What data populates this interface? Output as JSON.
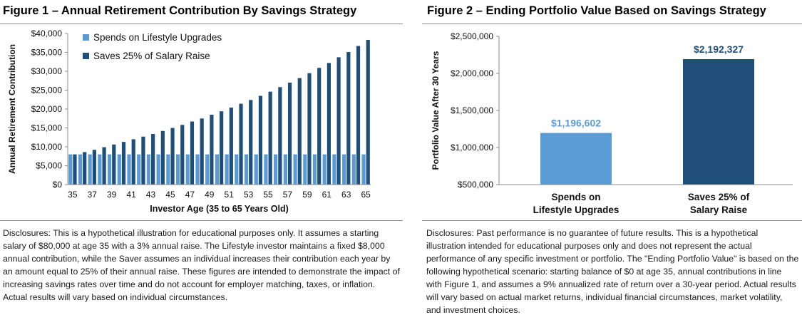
{
  "figure1": {
    "title": "Figure 1 – Annual Retirement Contribution By Savings Strategy",
    "disclosure": "Disclosures: This is a hypothetical illustration for educational purposes only. It assumes a starting salary of $80,000 at age 35 with a 3% annual raise. The Lifestyle investor maintains a fixed $8,000 annual contribution, while the Saver assumes an individual increases their contribution each year by an amount equal to 25% of their annual raise. These figures are intended to demonstrate the impact of increasing savings rates over time and do not account for employer matching, taxes, or inflation. Actual results will vary based on individual circumstances."
  },
  "figure2": {
    "title": "Figure 2 – Ending Portfolio Value Based on Savings Strategy",
    "disclosure": "Disclosures: Past performance is no guarantee of future results. This is a hypothetical illustration intended for educational purposes only and does not represent the actual performance of any specific investment or portfolio. The \"Ending Portfolio Value\" is based on the following hypothetical scenario: starting balance of $0 at age 35, annual contributions in line with Figure 1, and assumes a 9% annualized rate of return over a 30-year period. Actual results will vary based on actual market returns, individual financial circumstances, market volatility, and investment choices."
  },
  "colors": {
    "lifestyle": "#5b9bd5",
    "saver": "#1f4e79",
    "axis": "#8c8c8c",
    "text": "#000000"
  },
  "chart_data": [
    {
      "type": "bar",
      "title": "Figure 1 – Annual Retirement Contribution By Savings Strategy",
      "xlabel": "Investor Age (35 to 65 Years Old)",
      "ylabel": "Annual Retirement Contribution",
      "ylim": [
        0,
        40000
      ],
      "yticks": [
        0,
        5000,
        10000,
        15000,
        20000,
        25000,
        30000,
        35000,
        40000
      ],
      "ytick_labels": [
        "$0",
        "$5,000",
        "$10,000",
        "$15,000",
        "$20,000",
        "$25,000",
        "$30,000",
        "$35,000",
        "$40,000"
      ],
      "categories": [
        35,
        36,
        37,
        38,
        39,
        40,
        41,
        42,
        43,
        44,
        45,
        46,
        47,
        48,
        49,
        50,
        51,
        52,
        53,
        54,
        55,
        56,
        57,
        58,
        59,
        60,
        61,
        62,
        63,
        64,
        65
      ],
      "xtick_labels": [
        "35",
        "37",
        "39",
        "41",
        "43",
        "45",
        "47",
        "49",
        "51",
        "53",
        "55",
        "57",
        "59",
        "61",
        "63",
        "65"
      ],
      "legend_position": "top-left",
      "grid": false,
      "series": [
        {
          "name": "Spends on Lifestyle Upgrades",
          "color": "#5b9bd5",
          "values": [
            8000,
            8000,
            8000,
            8000,
            8000,
            8000,
            8000,
            8000,
            8000,
            8000,
            8000,
            8000,
            8000,
            8000,
            8000,
            8000,
            8000,
            8000,
            8000,
            8000,
            8000,
            8000,
            8000,
            8000,
            8000,
            8000,
            8000,
            8000,
            8000,
            8000,
            8000
          ]
        },
        {
          "name": "Saves 25% of Salary Raise",
          "color": "#1f4e79",
          "values": [
            8000,
            8600,
            9200,
            9900,
            10600,
            11300,
            12000,
            12700,
            13400,
            14200,
            15000,
            15800,
            16700,
            17500,
            18500,
            19400,
            20400,
            21400,
            22400,
            23500,
            24600,
            25800,
            27000,
            28200,
            29500,
            30900,
            32200,
            33700,
            35100,
            36700,
            38300
          ]
        }
      ]
    },
    {
      "type": "bar",
      "title": "Figure 2 – Ending Portfolio Value Based on Savings Strategy",
      "xlabel": "",
      "ylabel": "Portfolio Value After 30 Years",
      "ylim": [
        500000,
        2500000
      ],
      "yticks": [
        500000,
        1000000,
        1500000,
        2000000,
        2500000
      ],
      "ytick_labels": [
        "$500,000",
        "$1,000,000",
        "$1,500,000",
        "$2,000,000",
        "$2,500,000"
      ],
      "categories": [
        [
          "Spends on",
          "Lifestyle Upgrades"
        ],
        [
          "Saves 25% of",
          "Salary Raise"
        ]
      ],
      "values": [
        1196602,
        2192327
      ],
      "data_labels": [
        "$1,196,602",
        "$2,192,327"
      ],
      "colors": [
        "#5b9bd5",
        "#1f4e79"
      ],
      "grid": false
    }
  ]
}
